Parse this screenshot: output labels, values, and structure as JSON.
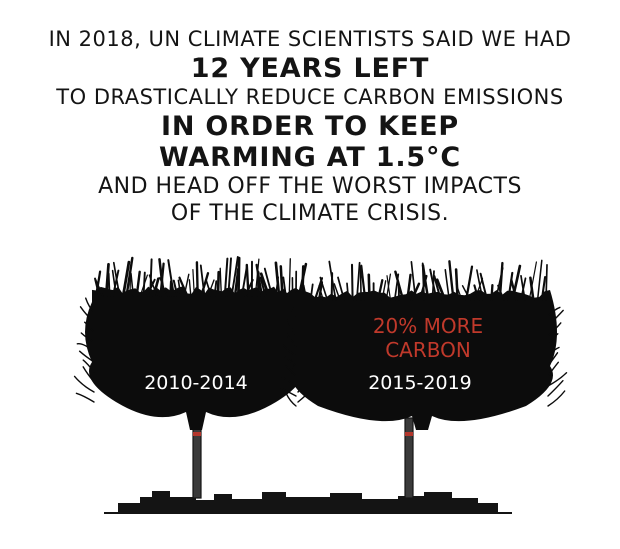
{
  "headline": {
    "line1": "IN 2018, UN CLIMATE SCIENTISTS SAID WE HAD",
    "line2": "12 YEARS LEFT",
    "line3": "TO DRASTICALLY REDUCE CARBON EMISSIONS",
    "line4": "IN ORDER TO KEEP",
    "line5": "WARMING AT 1.5°C",
    "line6": "AND HEAD OFF THE WORST IMPACTS",
    "line7": "OF THE CLIMATE CRISIS."
  },
  "clouds": {
    "left": {
      "period": "2010-2014"
    },
    "right": {
      "period": "2015-2019",
      "note_line1": "20% MORE",
      "note_line2": "CARBON"
    }
  },
  "colors": {
    "ink": "#141414",
    "smoke": "#0c0c0c",
    "accent_red": "#c0392b",
    "chimney_band": "#b3362c"
  }
}
